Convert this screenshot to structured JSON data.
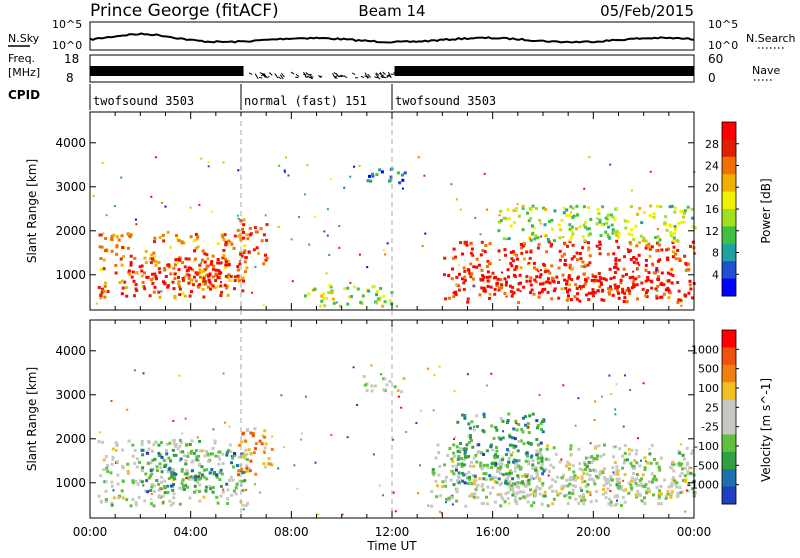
{
  "header": {
    "station": "Prince George (fitACF)",
    "beam": "Beam 14",
    "date": "05/Feb/2015"
  },
  "panels": {
    "sky": {
      "left_label": "N.Sky",
      "right_label": "N.Search",
      "left_ticks": [
        "10^5",
        "10^0"
      ],
      "right_ticks": [
        "10^5",
        "10^0"
      ]
    },
    "freq": {
      "left_label_1": "Freq.",
      "left_label_2": "[MHz]",
      "left_ticks": [
        "18",
        "8"
      ],
      "right_label": "Nave",
      "right_ticks": [
        "60",
        "0"
      ]
    },
    "cpid": {
      "label": "CPID",
      "segments": [
        {
          "name": "twofsound 3503",
          "start_h": 0,
          "end_h": 6
        },
        {
          "name": "normal (fast) 151",
          "start_h": 6,
          "end_h": 12
        },
        {
          "name": "twofsound 3503",
          "start_h": 12,
          "end_h": 24
        }
      ]
    }
  },
  "chart_data": [
    {
      "type": "heatmap",
      "name": "power",
      "ylabel": "Slant Range [km]",
      "ylim": [
        200,
        4700
      ],
      "y_ticks": [
        1000,
        2000,
        3000,
        4000
      ],
      "xlim": [
        0,
        24
      ],
      "colorbar": {
        "label": "Power [dB]",
        "ticks": [
          "28",
          "24",
          "20",
          "16",
          "12",
          "8",
          "4"
        ],
        "colors": [
          "#0000ff",
          "#2050d0",
          "#20a0a0",
          "#40c040",
          "#a0e020",
          "#f0f000",
          "#f0b000",
          "#f07000",
          "#e02000",
          "#ff0000"
        ]
      },
      "regions": [
        {
          "t0": 0.3,
          "t1": 6.2,
          "r0": 500,
          "r1": 2000,
          "level": 0.75
        },
        {
          "t0": 1.5,
          "t1": 5.5,
          "r0": 700,
          "r1": 1400,
          "level": 0.95
        },
        {
          "t0": 5.8,
          "t1": 7.0,
          "r0": 1200,
          "r1": 2300,
          "level": 0.85
        },
        {
          "t0": 8.5,
          "t1": 12.0,
          "r0": 300,
          "r1": 800,
          "level": 0.45
        },
        {
          "t0": 10.8,
          "t1": 12.5,
          "r0": 3100,
          "r1": 3500,
          "level": 0.2
        },
        {
          "t0": 14.0,
          "t1": 24.0,
          "r0": 400,
          "r1": 1800,
          "level": 0.85
        },
        {
          "t0": 15.5,
          "t1": 24.0,
          "r0": 600,
          "r1": 1000,
          "level": 1.0
        },
        {
          "t0": 16.0,
          "t1": 24.0,
          "r0": 1800,
          "r1": 2600,
          "level": 0.45
        }
      ]
    },
    {
      "type": "heatmap",
      "name": "velocity",
      "ylabel": "Slant Range [km]",
      "xlabel": "Time UT",
      "ylim": [
        200,
        4700
      ],
      "y_ticks": [
        1000,
        2000,
        3000,
        4000
      ],
      "xlim": [
        0,
        24
      ],
      "x_ticks": [
        "00:00",
        "04:00",
        "08:00",
        "12:00",
        "16:00",
        "20:00",
        "00:00"
      ],
      "colorbar": {
        "label": "Velocity [m s^-1]",
        "ticks": [
          "1000",
          "500",
          "100",
          "25",
          "-25",
          "-100",
          "-500",
          "-1000"
        ],
        "colors": [
          "#2040c0",
          "#2070b0",
          "#30a040",
          "#60c040",
          "#c8c8c0",
          "#c8c8c0",
          "#f0c020",
          "#f08010",
          "#f05010",
          "#ff0000"
        ]
      },
      "regions": [
        {
          "t0": 0.3,
          "t1": 6.2,
          "r0": 500,
          "r1": 2000,
          "level": 0.45
        },
        {
          "t0": 2.0,
          "t1": 6.0,
          "r0": 800,
          "r1": 1800,
          "level": 0.25
        },
        {
          "t0": 5.8,
          "t1": 7.2,
          "r0": 1200,
          "r1": 2300,
          "level": 0.7
        },
        {
          "t0": 10.8,
          "t1": 12.5,
          "r0": 3100,
          "r1": 3500,
          "level": 0.5
        },
        {
          "t0": 13.5,
          "t1": 24.0,
          "r0": 500,
          "r1": 1900,
          "level": 0.45
        },
        {
          "t0": 15.0,
          "t1": 24.0,
          "r0": 700,
          "r1": 1500,
          "level": 0.5
        },
        {
          "t0": 14.5,
          "t1": 18.0,
          "r0": 1000,
          "r1": 2600,
          "level": 0.25
        }
      ]
    }
  ]
}
